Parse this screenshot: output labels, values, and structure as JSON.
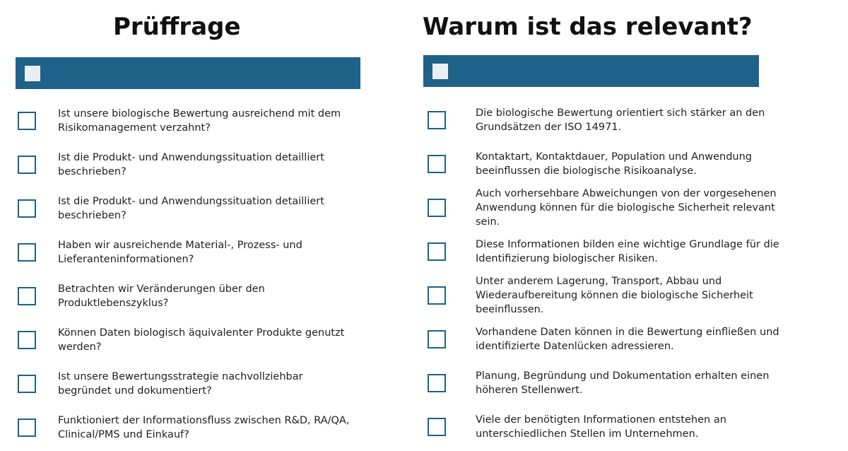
{
  "accent_color": "#1e6189",
  "left": {
    "heading": "Prüffrage",
    "items": [
      {
        "text": "Ist unsere biologische Bewertung ausreichend mit dem\nRisikomanagement verzahnt?"
      },
      {
        "text": "Ist die Produkt- und Anwendungssituation detailliert\nbeschrieben?"
      },
      {
        "text": "Ist die Produkt- und Anwendungssituation detailliert\nbeschrieben?"
      },
      {
        "text": "Haben wir ausreichende Material-, Prozess- und\nLieferanteninformationen?"
      },
      {
        "text": "Betrachten wir Veränderungen über den\nProduktlebenszyklus?"
      },
      {
        "text": "Können Daten biologisch äquivalenter Produkte genutzt\nwerden?"
      },
      {
        "text": "Ist unsere Bewertungsstrategie nachvollziehbar\nbegründet und dokumentiert?"
      },
      {
        "text": "Funktioniert der Informationsfluss zwischen R&D, RA/QA,\nClinical/PMS und Einkauf?"
      }
    ]
  },
  "right": {
    "heading": "Warum ist das relevant?",
    "items": [
      {
        "text": "Die biologische Bewertung orientiert sich stärker an den\nGrundsätzen der ISO 14971."
      },
      {
        "text": "Kontaktart, Kontaktdauer, Population und Anwendung\nbeeinflussen die biologische Risikoanalyse."
      },
      {
        "text": "Auch vorhersehbare Abweichungen von der vorgesehenen\nAnwendung können für die biologische Sicherheit relevant\nsein."
      },
      {
        "text": " Diese Informationen bilden eine wichtige Grundlage für die\nIdentifizierung biologischer Risiken."
      },
      {
        "text": " Unter anderem Lagerung, Transport, Abbau und\nWiederaufbereitung können die biologische Sicherheit\nbeeinflussen."
      },
      {
        "text": " Vorhandene Daten können in die Bewertung einfließen und\nidentifizierte Datenlücken adressieren."
      },
      {
        "text": " Planung, Begründung und Dokumentation erhalten einen\nhöheren Stellenwert."
      },
      {
        "text": " Viele der benötigten Informationen entstehen an\nunterschiedlichen Stellen im Unternehmen."
      }
    ]
  }
}
